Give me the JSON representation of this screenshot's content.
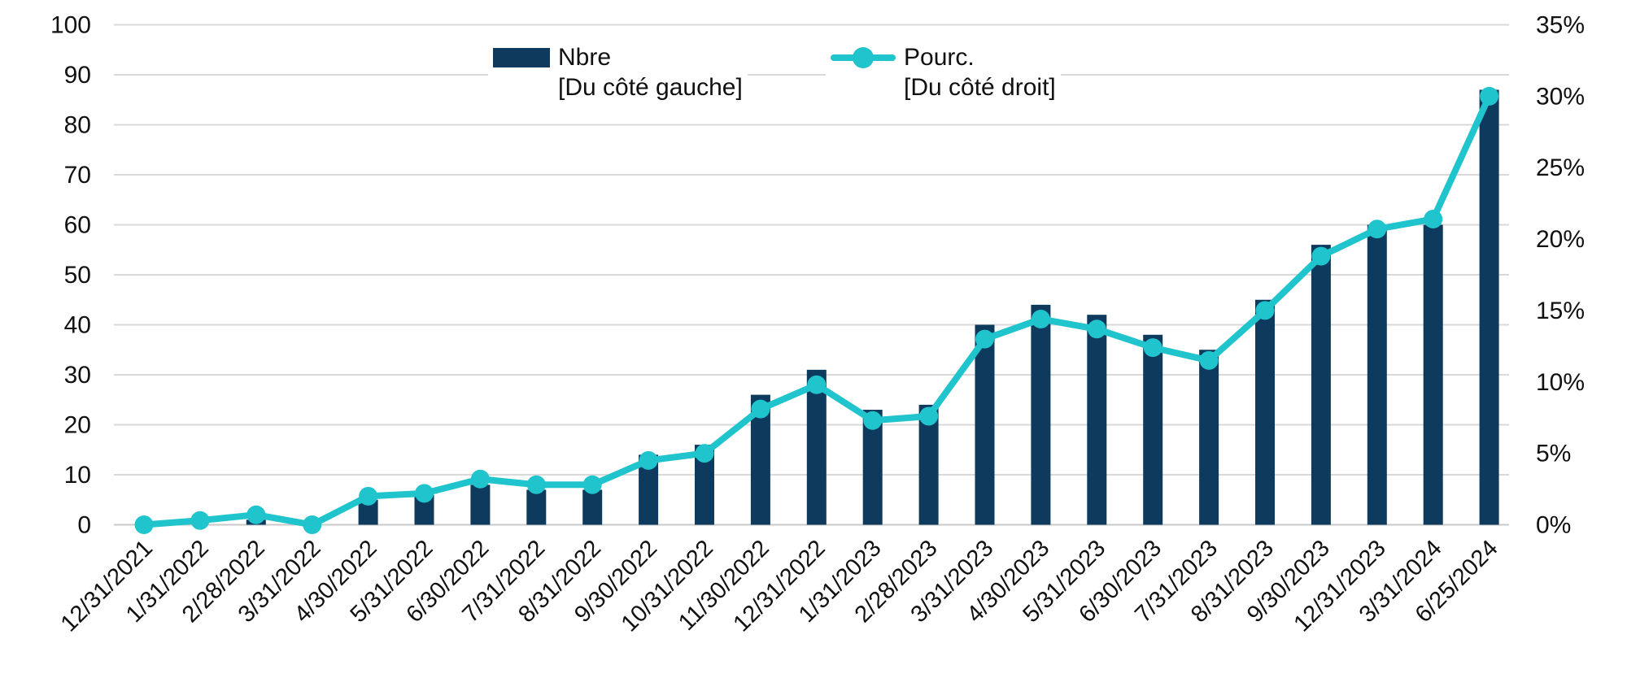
{
  "legend": {
    "bars": {
      "label": "Nbre",
      "sublabel": "[Du côté gauche]"
    },
    "line": {
      "label": "Pourc.",
      "sublabel": "[Du côté droit]"
    }
  },
  "colors": {
    "bar": "#0E3A5D",
    "line": "#20C4CD",
    "grid": "#D9D9D9",
    "axis_line": "#C9C9C9",
    "text": "#111111"
  },
  "chart_data": {
    "type": "bar",
    "subtype": "combo-bar-line-dual-axis",
    "title": "",
    "xlabel": "",
    "ylabel_left": "",
    "ylabel_right": "",
    "grid": true,
    "legend_position": "top",
    "categories": [
      "12/31/2021",
      "1/31/2022",
      "2/28/2022",
      "3/31/2022",
      "4/30/2022",
      "5/31/2022",
      "6/30/2022",
      "7/31/2022",
      "8/31/2022",
      "9/30/2022",
      "10/31/2022",
      "11/30/2022",
      "12/31/2022",
      "1/31/2023",
      "2/28/2023",
      "3/31/2023",
      "4/30/2023",
      "5/31/2023",
      "6/30/2023",
      "7/31/2023",
      "8/31/2023",
      "9/30/2023",
      "12/31/2023",
      "3/31/2024",
      "6/25/2024"
    ],
    "series": [
      {
        "name": "Nbre",
        "type": "bar",
        "axis": "left",
        "values": [
          0,
          0,
          1,
          0,
          5,
          6,
          8,
          7,
          7,
          14,
          16,
          26,
          31,
          23,
          24,
          40,
          44,
          42,
          38,
          35,
          45,
          56,
          60,
          60,
          87
        ]
      },
      {
        "name": "Pourc.",
        "type": "line",
        "axis": "right",
        "unit": "%",
        "values": [
          0,
          0.3,
          0.7,
          0,
          2.0,
          2.2,
          3.2,
          2.8,
          2.8,
          4.5,
          5.0,
          8.1,
          9.8,
          7.3,
          7.6,
          13.0,
          14.4,
          13.7,
          12.4,
          11.5,
          15.0,
          18.8,
          20.7,
          21.4,
          30.0
        ]
      }
    ],
    "left_axis": {
      "min": 0,
      "max": 100,
      "step": 10,
      "tick_labels": [
        "0",
        "10",
        "20",
        "30",
        "40",
        "50",
        "60",
        "70",
        "80",
        "90",
        "100"
      ]
    },
    "right_axis": {
      "min": 0,
      "max": 35,
      "step": 5,
      "format": "percent",
      "tick_labels": [
        "0%",
        "5%",
        "10%",
        "15%",
        "20%",
        "25%",
        "30%",
        "35%"
      ]
    }
  }
}
